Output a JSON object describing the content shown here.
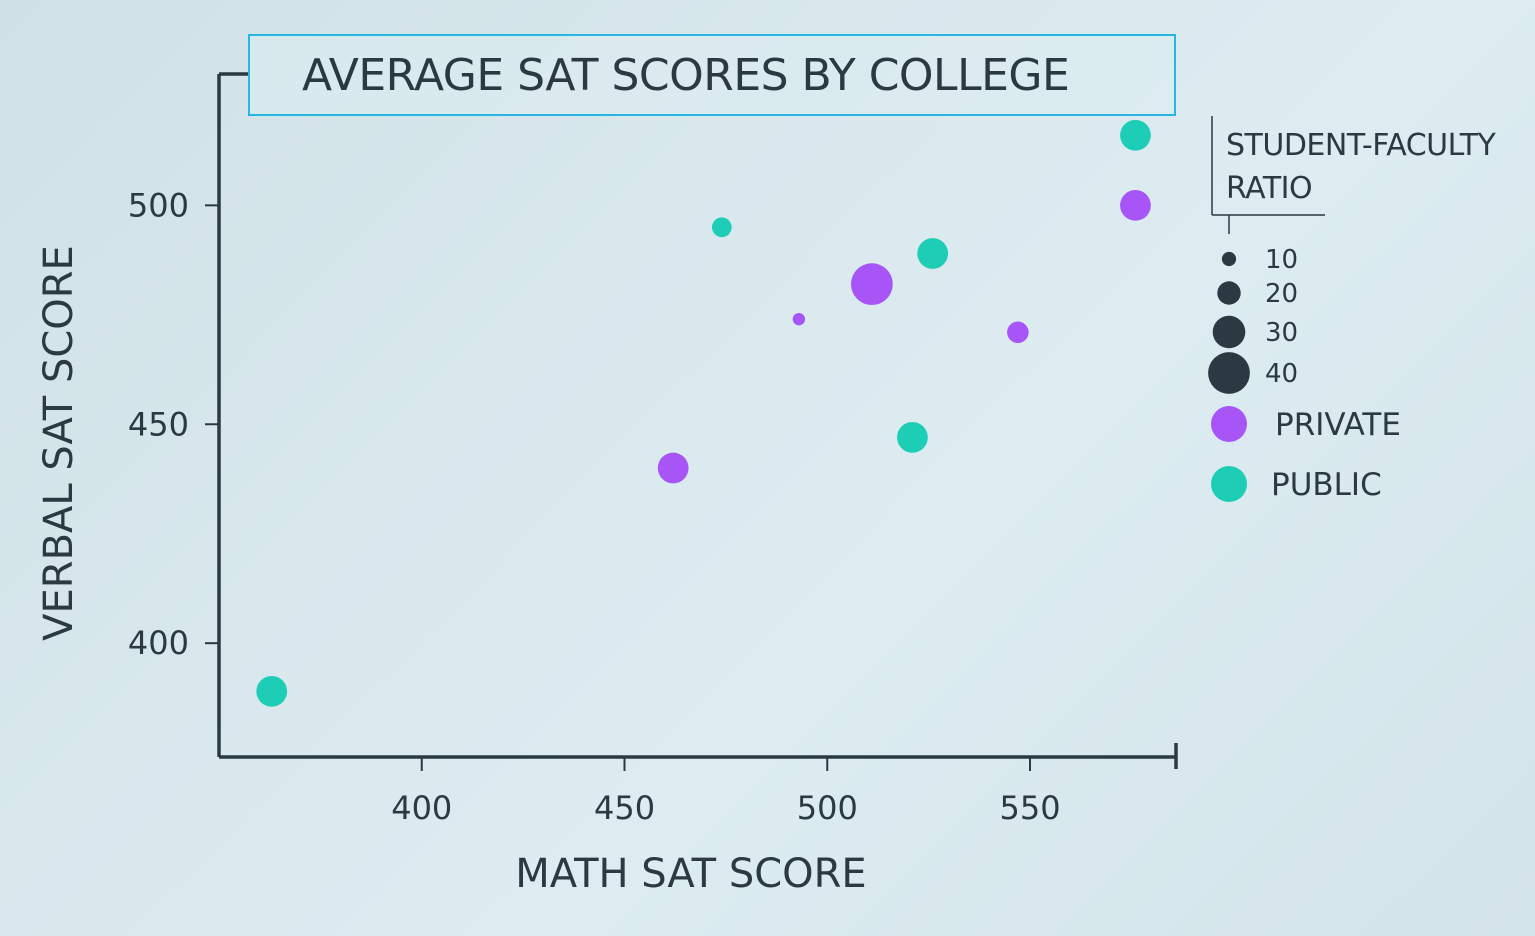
{
  "chart_data": {
    "type": "scatter",
    "title": "AVERAGE SAT SCORES BY COLLEGE",
    "xlabel": "MATH SAT SCORE",
    "ylabel": "VERBAL SAT SCORE",
    "xlim": [
      350,
      586
    ],
    "ylim": [
      374,
      530
    ],
    "xticks": [
      400,
      450,
      500,
      550
    ],
    "yticks": [
      400,
      450,
      500
    ],
    "grid": false,
    "legend_placement": "right",
    "size_legend": {
      "title_line1": "STUDENT-FACULTY",
      "title_line2": "RATIO",
      "entries": [
        {
          "label": "10",
          "ratio": 10
        },
        {
          "label": "20",
          "ratio": 20
        },
        {
          "label": "30",
          "ratio": 30
        },
        {
          "label": "40",
          "ratio": 40
        }
      ]
    },
    "series": [
      {
        "name": "PRIVATE",
        "color": "#a855f7",
        "points": [
          {
            "x": 462,
            "y": 440,
            "ratio": 28
          },
          {
            "x": 493,
            "y": 474,
            "ratio": 8
          },
          {
            "x": 511,
            "y": 482,
            "ratio": 40
          },
          {
            "x": 547,
            "y": 471,
            "ratio": 18
          },
          {
            "x": 576,
            "y": 500,
            "ratio": 28
          }
        ]
      },
      {
        "name": "PUBLIC",
        "color": "#1dcdb5",
        "points": [
          {
            "x": 363,
            "y": 389,
            "ratio": 28
          },
          {
            "x": 474,
            "y": 495,
            "ratio": 16
          },
          {
            "x": 521,
            "y": 447,
            "ratio": 28
          },
          {
            "x": 526,
            "y": 489,
            "ratio": 28
          },
          {
            "x": 576,
            "y": 516,
            "ratio": 28
          }
        ]
      }
    ]
  }
}
